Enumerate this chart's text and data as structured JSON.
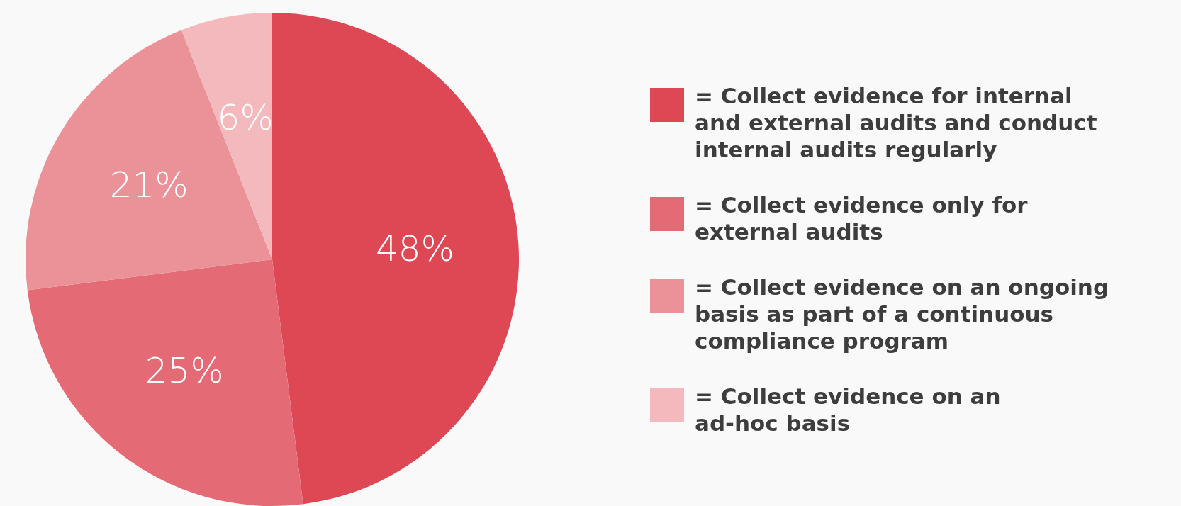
{
  "chart_data": {
    "type": "pie",
    "categories": [
      "= Collect evidence for internal\nand external audits and conduct\ninternal audits regularly",
      "= Collect evidence only for\nexternal audits",
      "= Collect evidence on an ongoing\nbasis as part of a continuous\ncompliance program",
      "= Collect evidence on an\nad-hoc basis"
    ],
    "values": [
      48,
      25,
      21,
      6
    ],
    "value_labels": [
      "48%",
      "25%",
      "21%",
      "6%"
    ],
    "colors": [
      "#dd4854",
      "#e46b75",
      "#ea9297",
      "#f4b9bd"
    ],
    "legend": "right"
  }
}
